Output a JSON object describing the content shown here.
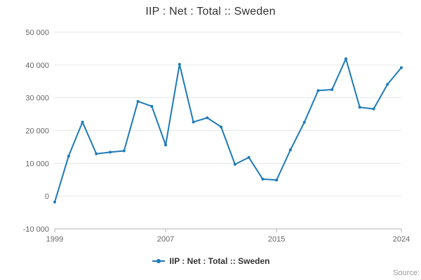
{
  "chart_data": {
    "type": "line",
    "title": "IIP : Net : Total :: Sweden",
    "legend_label": "IIP : Net : Total :: Sweden",
    "source_label": "Source:",
    "color": "#1d7ab8",
    "grid": "horizontal",
    "legend_position": "bottom",
    "xlabel": "",
    "ylabel": "",
    "xlim": [
      1999,
      2024
    ],
    "ylim": [
      -10000,
      50000
    ],
    "x": [
      1999,
      2000,
      2001,
      2002,
      2003,
      2004,
      2005,
      2006,
      2007,
      2008,
      2009,
      2010,
      2011,
      2012,
      2013,
      2014,
      2015,
      2016,
      2017,
      2018,
      2019,
      2020,
      2021,
      2022,
      2023,
      2024
    ],
    "values": [
      -1800,
      12200,
      22600,
      12900,
      13400,
      13800,
      28900,
      27400,
      15600,
      40200,
      22600,
      23900,
      21100,
      9700,
      11800,
      5200,
      4900,
      14100,
      22500,
      32200,
      32500,
      41900,
      27100,
      26600,
      34100,
      39200
    ],
    "xticks": [
      1999,
      2007,
      2015,
      2024
    ],
    "xtick_labels": [
      "1999",
      "2007",
      "2015",
      "2024"
    ],
    "yticks": [
      -10000,
      0,
      10000,
      20000,
      30000,
      40000,
      50000
    ],
    "ytick_labels": [
      "-10 000",
      "0",
      "10 000",
      "20 000",
      "30 000",
      "40 000",
      "50 000"
    ]
  }
}
